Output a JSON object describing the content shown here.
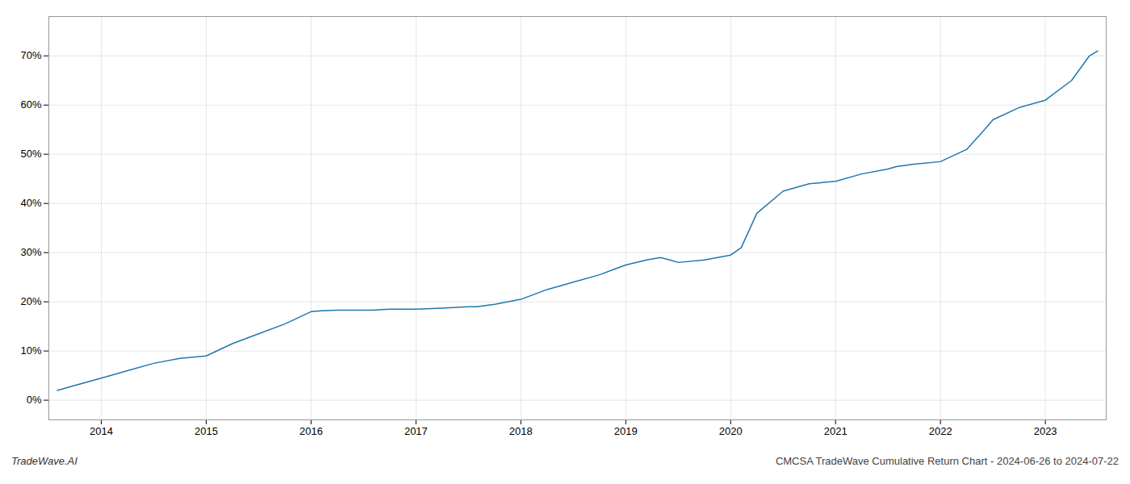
{
  "chart_data": {
    "type": "line",
    "title": "CMCSA TradeWave Cumulative Return Chart - 2024-06-26 to 2024-07-22",
    "annotations": [
      "TradeWave.AI"
    ],
    "color": "#2176ae",
    "x": [
      2013.58,
      2013.75,
      2014.0,
      2014.25,
      2014.5,
      2014.75,
      2015.0,
      2015.25,
      2015.5,
      2015.75,
      2016.0,
      2016.1,
      2016.25,
      2016.5,
      2016.58,
      2016.75,
      2017.0,
      2017.25,
      2017.5,
      2017.58,
      2017.75,
      2018.0,
      2018.25,
      2018.5,
      2018.75,
      2019.0,
      2019.2,
      2019.33,
      2019.42,
      2019.5,
      2019.75,
      2020.0,
      2020.1,
      2020.25,
      2020.5,
      2020.58,
      2020.75,
      2021.0,
      2021.25,
      2021.5,
      2021.58,
      2021.75,
      2022.0,
      2022.25,
      2022.42,
      2022.5,
      2022.75,
      2023.0,
      2023.25,
      2023.42,
      2023.5
    ],
    "values": [
      2.0,
      3.0,
      4.5,
      6.0,
      7.5,
      8.5,
      9.0,
      11.5,
      13.5,
      15.5,
      18.0,
      18.2,
      18.3,
      18.3,
      18.3,
      18.5,
      18.5,
      18.7,
      19.0,
      19.0,
      19.5,
      20.5,
      22.5,
      24.0,
      25.5,
      27.5,
      28.5,
      29.0,
      28.5,
      28.0,
      28.5,
      29.5,
      31.0,
      38.0,
      42.5,
      43.0,
      44.0,
      44.5,
      46.0,
      47.0,
      47.5,
      48.0,
      48.5,
      51.0,
      55.0,
      57.0,
      59.5,
      61.0,
      65.0,
      70.0,
      71.0
    ],
    "xlim": [
      2013.5,
      2023.58
    ],
    "ylim": [
      -4,
      78
    ],
    "xticks": [
      2014,
      2015,
      2016,
      2017,
      2018,
      2019,
      2020,
      2021,
      2022,
      2023
    ],
    "yticks": [
      {
        "value": 0,
        "label": "0%"
      },
      {
        "value": 10,
        "label": "10%"
      },
      {
        "value": 20,
        "label": "20%"
      },
      {
        "value": 30,
        "label": "30%"
      },
      {
        "value": 40,
        "label": "40%"
      },
      {
        "value": 50,
        "label": "50%"
      },
      {
        "value": 60,
        "label": "60%"
      },
      {
        "value": 70,
        "label": "70%"
      }
    ],
    "grid": true
  }
}
